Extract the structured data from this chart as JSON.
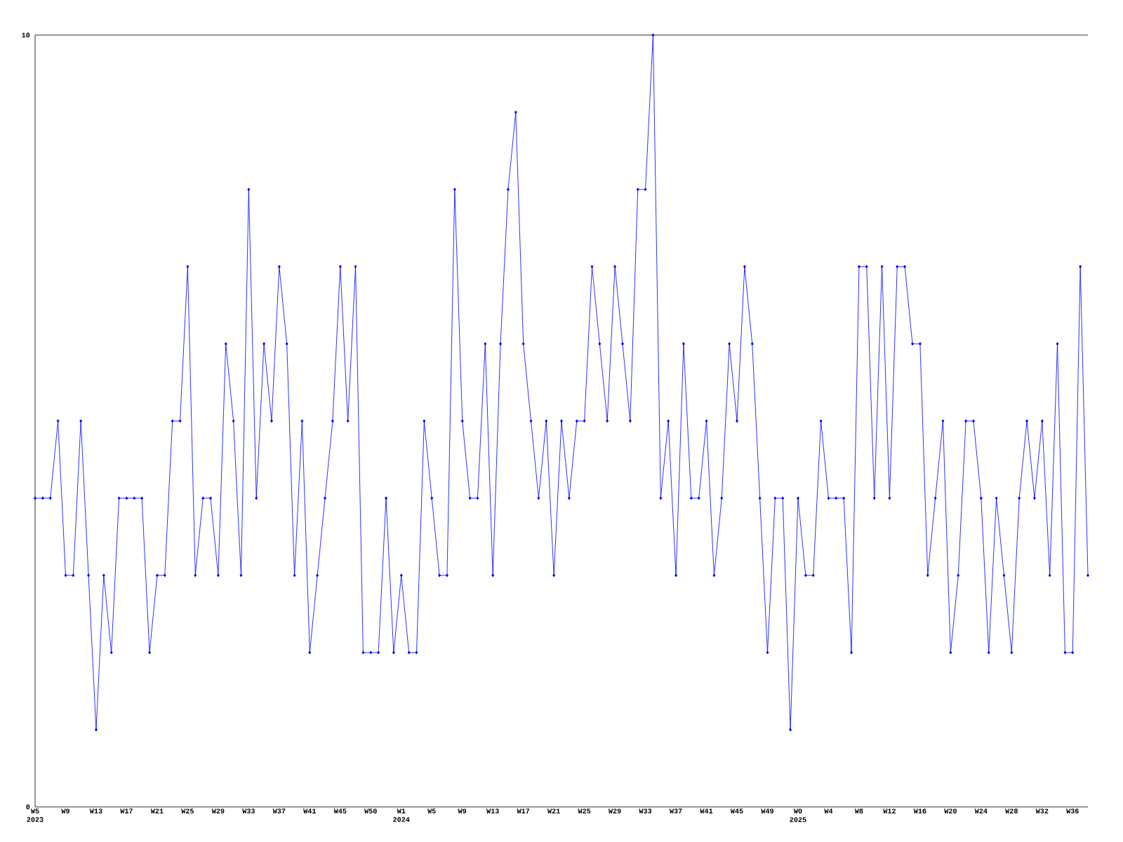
{
  "chart_data": {
    "type": "line",
    "categories": [
      "W5 2023",
      null,
      null,
      null,
      "W9",
      null,
      null,
      null,
      "W13",
      null,
      null,
      null,
      "W17",
      null,
      null,
      null,
      "W21",
      null,
      null,
      null,
      "W25",
      null,
      null,
      null,
      "W29",
      null,
      null,
      null,
      "W33",
      null,
      null,
      null,
      "W37",
      null,
      null,
      null,
      "W41",
      null,
      null,
      null,
      "W45",
      null,
      null,
      null,
      "W50",
      null,
      null,
      null,
      "W1 2024",
      null,
      null,
      null,
      "W5",
      null,
      null,
      null,
      "W9",
      null,
      null,
      null,
      "W13",
      null,
      null,
      null,
      "W17",
      null,
      null,
      null,
      "W21",
      null,
      null,
      null,
      "W25",
      null,
      null,
      null,
      "W29",
      null,
      null,
      null,
      "W33",
      null,
      null,
      null,
      "W37",
      null,
      null,
      null,
      "W41",
      null,
      null,
      null,
      "W45",
      null,
      null,
      null,
      "W49",
      null,
      null,
      null,
      "W0 2025",
      null,
      null,
      null,
      "W4",
      null,
      null,
      null,
      "W8",
      null,
      null,
      null,
      "W12",
      null,
      null,
      null,
      "W16",
      null,
      null,
      null,
      "W20",
      null,
      null,
      null,
      "W24",
      null,
      null,
      null,
      "W28",
      null,
      null,
      null,
      "W32",
      null,
      null,
      null,
      "W36",
      null,
      null
    ],
    "values": [
      4,
      4,
      4,
      5,
      3,
      3,
      5,
      3,
      1,
      3,
      2,
      4,
      4,
      4,
      4,
      2,
      3,
      3,
      5,
      5,
      7,
      3,
      4,
      4,
      3,
      6,
      5,
      3,
      8,
      4,
      6,
      5,
      7,
      6,
      3,
      5,
      2,
      3,
      4,
      5,
      7,
      5,
      7,
      2,
      2,
      2,
      4,
      2,
      3,
      2,
      2,
      5,
      4,
      3,
      3,
      8,
      5,
      4,
      4,
      6,
      3,
      6,
      8,
      9,
      6,
      5,
      4,
      5,
      3,
      5,
      4,
      5,
      5,
      7,
      6,
      5,
      7,
      6,
      5,
      8,
      8,
      10,
      4,
      5,
      3,
      6,
      4,
      4,
      5,
      3,
      4,
      6,
      5,
      7,
      6,
      4,
      2,
      4,
      4,
      1,
      4,
      3,
      3,
      5,
      4,
      4,
      4,
      2,
      7,
      7,
      4,
      7,
      4,
      7,
      7,
      6,
      6,
      3,
      4,
      5,
      2,
      3,
      5,
      5,
      4,
      2,
      4,
      3,
      2,
      4,
      5,
      4,
      5,
      3,
      6,
      2,
      2,
      7,
      3
    ],
    "color": "#0000ff",
    "ylim": [
      0,
      10
    ],
    "yticks": [
      0,
      10
    ],
    "marker": "diamond",
    "line_style": "solid"
  }
}
